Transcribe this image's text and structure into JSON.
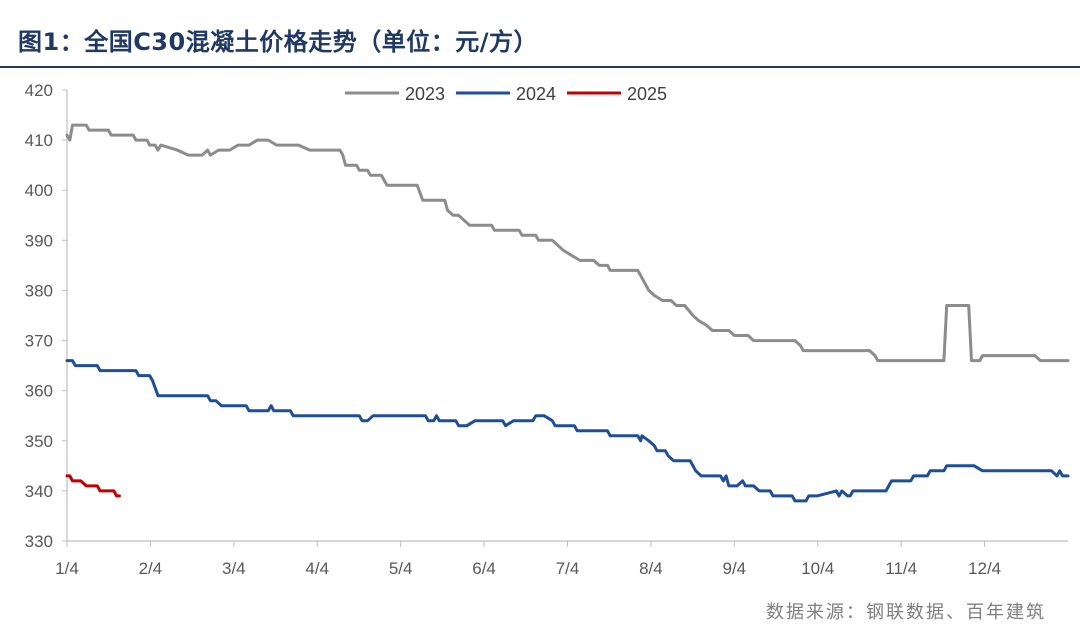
{
  "title": "图1：全国C30混凝土价格走势（单位：元/方）",
  "source": "数据来源：钢联数据、百年建筑",
  "chart_data": {
    "type": "line",
    "title": "图1：全国C30混凝土价格走势（单位：元/方）",
    "xlabel": "",
    "ylabel": "",
    "ylim": [
      330,
      420
    ],
    "yticks": [
      330,
      340,
      350,
      360,
      370,
      380,
      390,
      400,
      410,
      420
    ],
    "xticks": [
      "1/4",
      "2/4",
      "3/4",
      "4/4",
      "5/4",
      "6/4",
      "7/4",
      "8/4",
      "9/4",
      "10/4",
      "11/4",
      "12/4"
    ],
    "xlim_day": [
      0,
      363
    ],
    "grid": false,
    "legend": "top-center",
    "series": [
      {
        "name": "2023",
        "color": "#8c8c8c",
        "points": [
          [
            0,
            411
          ],
          [
            1,
            410
          ],
          [
            2,
            413
          ],
          [
            5,
            413
          ],
          [
            7,
            413
          ],
          [
            8,
            412
          ],
          [
            12,
            412
          ],
          [
            15,
            412
          ],
          [
            16,
            411
          ],
          [
            24,
            411
          ],
          [
            25,
            410
          ],
          [
            29,
            410
          ],
          [
            30,
            409
          ],
          [
            32,
            409
          ],
          [
            33,
            408
          ],
          [
            34,
            409
          ],
          [
            40,
            408
          ],
          [
            44,
            407
          ],
          [
            49,
            407
          ],
          [
            51,
            408
          ],
          [
            52,
            407
          ],
          [
            55,
            408
          ],
          [
            59,
            408
          ],
          [
            62,
            409
          ],
          [
            66,
            409
          ],
          [
            69,
            410
          ],
          [
            73,
            410
          ],
          [
            76,
            409
          ],
          [
            84,
            409
          ],
          [
            88,
            408
          ],
          [
            99,
            408
          ],
          [
            100,
            407
          ],
          [
            101,
            405
          ],
          [
            105,
            405
          ],
          [
            106,
            404
          ],
          [
            109,
            404
          ],
          [
            110,
            403
          ],
          [
            114,
            403
          ],
          [
            116,
            401
          ],
          [
            127,
            401
          ],
          [
            129,
            398
          ],
          [
            137,
            398
          ],
          [
            138,
            396
          ],
          [
            140,
            395
          ],
          [
            142,
            395
          ],
          [
            144,
            394
          ],
          [
            146,
            393
          ],
          [
            154,
            393
          ],
          [
            155,
            392
          ],
          [
            164,
            392
          ],
          [
            165,
            391
          ],
          [
            170,
            391
          ],
          [
            171,
            390
          ],
          [
            176,
            390
          ],
          [
            178,
            389
          ],
          [
            180,
            388
          ],
          [
            183,
            387
          ],
          [
            186,
            386
          ],
          [
            191,
            386
          ],
          [
            193,
            385
          ],
          [
            196,
            385
          ],
          [
            197,
            384
          ],
          [
            207,
            384
          ],
          [
            209,
            382
          ],
          [
            211,
            380
          ],
          [
            213,
            379
          ],
          [
            216,
            378
          ],
          [
            219,
            378
          ],
          [
            221,
            377
          ],
          [
            224,
            377
          ],
          [
            227,
            375
          ],
          [
            229,
            374
          ],
          [
            232,
            373
          ],
          [
            234,
            372
          ],
          [
            240,
            372
          ],
          [
            242,
            371
          ],
          [
            247,
            371
          ],
          [
            249,
            370
          ],
          [
            264,
            370
          ],
          [
            266,
            369
          ],
          [
            267,
            368
          ],
          [
            291,
            368
          ],
          [
            293,
            367
          ],
          [
            294,
            366
          ],
          [
            318,
            366
          ],
          [
            319,
            377
          ],
          [
            327,
            377
          ],
          [
            328,
            366
          ],
          [
            331,
            366
          ],
          [
            332,
            367
          ],
          [
            351,
            367
          ],
          [
            353,
            366
          ],
          [
            363,
            366
          ]
        ]
      },
      {
        "name": "2024",
        "color": "#1f4e99",
        "points": [
          [
            0,
            366
          ],
          [
            2,
            366
          ],
          [
            3,
            365
          ],
          [
            11,
            365
          ],
          [
            12,
            364
          ],
          [
            25,
            364
          ],
          [
            26,
            363
          ],
          [
            30,
            363
          ],
          [
            31,
            362
          ],
          [
            33,
            359
          ],
          [
            51,
            359
          ],
          [
            52,
            358
          ],
          [
            54,
            358
          ],
          [
            56,
            357
          ],
          [
            65,
            357
          ],
          [
            66,
            356
          ],
          [
            73,
            356
          ],
          [
            74,
            357
          ],
          [
            75,
            356
          ],
          [
            81,
            356
          ],
          [
            82,
            355
          ],
          [
            106,
            355
          ],
          [
            107,
            354
          ],
          [
            109,
            354
          ],
          [
            111,
            355
          ],
          [
            130,
            355
          ],
          [
            131,
            354
          ],
          [
            133,
            354
          ],
          [
            134,
            355
          ],
          [
            135,
            354
          ],
          [
            141,
            354
          ],
          [
            142,
            353
          ],
          [
            145,
            353
          ],
          [
            148,
            354
          ],
          [
            158,
            354
          ],
          [
            159,
            353
          ],
          [
            162,
            354
          ],
          [
            169,
            354
          ],
          [
            170,
            355
          ],
          [
            173,
            355
          ],
          [
            176,
            354
          ],
          [
            177,
            353
          ],
          [
            184,
            353
          ],
          [
            185,
            352
          ],
          [
            196,
            352
          ],
          [
            197,
            351
          ],
          [
            207,
            351
          ],
          [
            208,
            350
          ],
          [
            208.5,
            351
          ],
          [
            211,
            350
          ],
          [
            213,
            349
          ],
          [
            214,
            348
          ],
          [
            217,
            348
          ],
          [
            218,
            347
          ],
          [
            220,
            346
          ],
          [
            226,
            346
          ],
          [
            228,
            344
          ],
          [
            230,
            343
          ],
          [
            237,
            343
          ],
          [
            238,
            342
          ],
          [
            239,
            343
          ],
          [
            240,
            341
          ],
          [
            243,
            341
          ],
          [
            245,
            342
          ],
          [
            246,
            341
          ],
          [
            249,
            341
          ],
          [
            251,
            340
          ],
          [
            255,
            340
          ],
          [
            256,
            339
          ],
          [
            263,
            339
          ],
          [
            264,
            338
          ],
          [
            268,
            338
          ],
          [
            269,
            339
          ],
          [
            272,
            339
          ],
          [
            279,
            340
          ],
          [
            280,
            339
          ],
          [
            281,
            340
          ],
          [
            283,
            339
          ],
          [
            284,
            339
          ],
          [
            285,
            340
          ],
          [
            297,
            340
          ],
          [
            299,
            342
          ],
          [
            306,
            342
          ],
          [
            307,
            343
          ],
          [
            312,
            343
          ],
          [
            313,
            344
          ],
          [
            318,
            344
          ],
          [
            319,
            345
          ],
          [
            329,
            345
          ],
          [
            332,
            344
          ],
          [
            357,
            344
          ],
          [
            359,
            343
          ],
          [
            360,
            344
          ],
          [
            361,
            343
          ],
          [
            363,
            343
          ]
        ]
      },
      {
        "name": "2025",
        "color": "#c00000",
        "points": [
          [
            0,
            343
          ],
          [
            1,
            343
          ],
          [
            2,
            342
          ],
          [
            5,
            342
          ],
          [
            7,
            341
          ],
          [
            11,
            341
          ],
          [
            12,
            340
          ],
          [
            17,
            340
          ],
          [
            18,
            339
          ],
          [
            19,
            339
          ]
        ]
      }
    ]
  }
}
